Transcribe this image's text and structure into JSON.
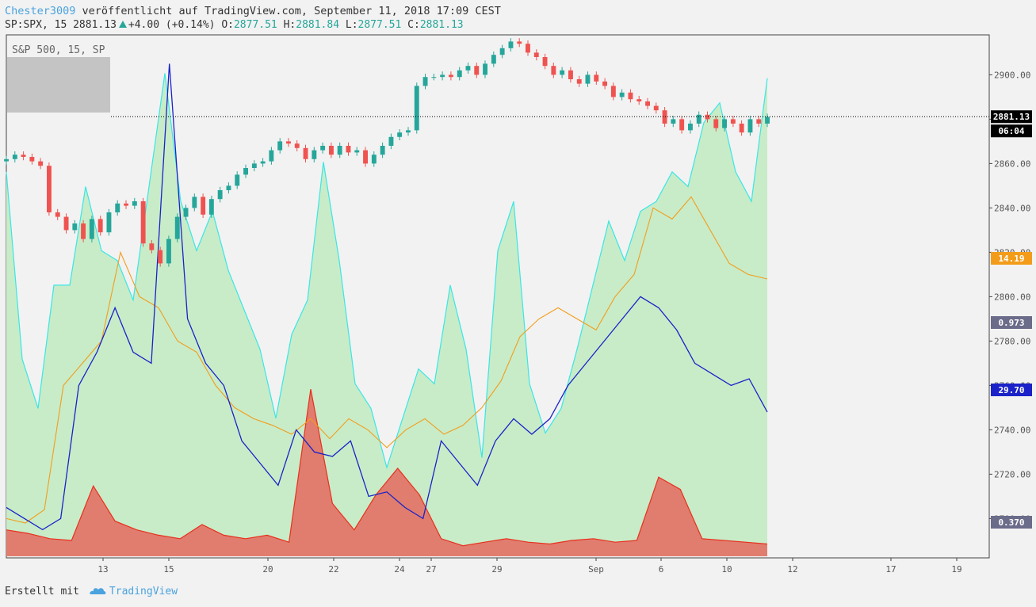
{
  "header": {
    "author": "Chester3009",
    "published": "veröffentlicht auf TradingView.com, September 11, 2018 17:09 CEST"
  },
  "ohlc": {
    "symbol": "SP:SPX, 15",
    "last": "2881.13",
    "change": "+4.00 (+0.14%)",
    "o_label": "O:",
    "o": "2877.51",
    "h_label": "H:",
    "h": "2881.84",
    "l_label": "L:",
    "l": "2877.51",
    "c_label": "C:",
    "c": "2881.13"
  },
  "legend_label": "S&P 500, 15, SP",
  "footer": {
    "made_with": "Erstellt mit",
    "brand": "TradingView"
  },
  "colors": {
    "candle_up": "#26a69a",
    "candle_down": "#ef5350",
    "cyan_line": "#39e6e6",
    "green_fill": "#c8ecc8",
    "red_series": "#e8301e",
    "red_fill": "#e07d6e",
    "orange_series": "#f39c1a",
    "blue_series": "#1a22c8"
  },
  "chart_data": {
    "type": "line",
    "x_ticks": [
      "13",
      "15",
      "20",
      "22",
      "24",
      "27",
      "29",
      "Sep",
      "6",
      "10",
      "12",
      "17",
      "19"
    ],
    "y_ticks": [
      2700,
      2720,
      2740,
      2760,
      2780,
      2800,
      2820,
      2840,
      2860,
      2880,
      2900
    ],
    "ylim": [
      2683,
      2918
    ],
    "price_labels": {
      "last_price": "2881.13",
      "countdown": "06:04",
      "orange_value": "14.19",
      "cyan_value": "0.973",
      "blue_value": "29.70",
      "red_value": "0.370"
    },
    "series": [
      {
        "type": "candlestick",
        "close": [
          2862,
          2864,
          2863,
          2861,
          2859,
          2838,
          2836,
          2830,
          2833,
          2826,
          2835,
          2829,
          2838,
          2842,
          2841,
          2843,
          2824,
          2821,
          2815,
          2826,
          2836,
          2840,
          2845,
          2837,
          2844,
          2848,
          2850,
          2855,
          2858,
          2860,
          2861,
          2866,
          2870,
          2869,
          2867,
          2862,
          2866,
          2868,
          2864,
          2868,
          2865,
          2866,
          2860,
          2864,
          2868,
          2872,
          2874,
          2875,
          2895,
          2899,
          2899,
          2900,
          2899,
          2902,
          2904,
          2900,
          2905,
          2909,
          2912,
          2915,
          2914,
          2910,
          2908,
          2904,
          2900,
          2902,
          2898,
          2896,
          2900,
          2897,
          2895,
          2890,
          2892,
          2889,
          2888,
          2886,
          2884,
          2878,
          2880,
          2875,
          2878,
          2882,
          2880,
          2876,
          2880,
          2878,
          2874,
          2880,
          2878,
          2881
        ]
      },
      {
        "name": "",
        "color": "cyan",
        "values": [
          0.78,
          0.4,
          0.3,
          0.55,
          0.55,
          0.75,
          0.62,
          0.6,
          0.52,
          0.75,
          0.98,
          0.72,
          0.62,
          0.7,
          0.58,
          0.5,
          0.42,
          0.28,
          0.45,
          0.52,
          0.8,
          0.6,
          0.35,
          0.3,
          0.18,
          0.28,
          0.38,
          0.35,
          0.55,
          0.42,
          0.2,
          0.62,
          0.72,
          0.35,
          0.25,
          0.3,
          0.42,
          0.55,
          0.68,
          0.6,
          0.7,
          0.72,
          0.78,
          0.75,
          0.88,
          0.92,
          0.78,
          0.72,
          0.97
        ]
      },
      {
        "name": "",
        "color": "blue",
        "values": [
          2705,
          2700,
          2695,
          2700,
          2760,
          2775,
          2795,
          2775,
          2770,
          2905,
          2790,
          2770,
          2760,
          2735,
          2725,
          2715,
          2740,
          2730,
          2728,
          2735,
          2710,
          2712,
          2705,
          2700,
          2735,
          2725,
          2715,
          2735,
          2745,
          2738,
          2745,
          2760,
          2770,
          2780,
          2790,
          2800,
          2795,
          2785,
          2770,
          2765,
          2760,
          2763,
          2748
        ]
      },
      {
        "name": "",
        "color": "orange",
        "values": [
          2700,
          2698,
          2704,
          2760,
          2770,
          2780,
          2820,
          2800,
          2795,
          2780,
          2775,
          2760,
          2750,
          2745,
          2742,
          2738,
          2745,
          2736,
          2745,
          2740,
          2732,
          2740,
          2745,
          2738,
          2742,
          2750,
          2762,
          2782,
          2790,
          2795,
          2790,
          2785,
          2800,
          2810,
          2840,
          2835,
          2845,
          2830,
          2815,
          2810,
          2808
        ]
      },
      {
        "name": "",
        "color": "red",
        "values": [
          0.15,
          0.13,
          0.1,
          0.09,
          0.4,
          0.2,
          0.15,
          0.12,
          0.1,
          0.18,
          0.12,
          0.1,
          0.12,
          0.08,
          0.95,
          0.3,
          0.15,
          0.35,
          0.5,
          0.35,
          0.1,
          0.06,
          0.08,
          0.1,
          0.08,
          0.07,
          0.09,
          0.1,
          0.08,
          0.09,
          0.45,
          0.38,
          0.1,
          0.09,
          0.08,
          0.07
        ]
      }
    ]
  }
}
